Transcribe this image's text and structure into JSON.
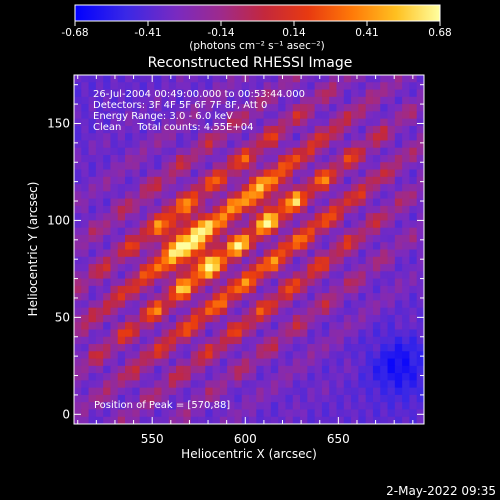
{
  "chart_data": {
    "type": "heatmap",
    "title": "Reconstructed RHESSI Image",
    "xlabel": "Heliocentric X (arcsec)",
    "ylabel": "Heliocentric Y (arcsec)",
    "xlim": [
      508,
      696
    ],
    "ylim": [
      -5,
      175
    ],
    "x_ticks": [
      550,
      600,
      650
    ],
    "y_ticks": [
      0,
      50,
      100,
      150
    ],
    "colorbar": {
      "range": [
        -0.68,
        0.68
      ],
      "ticks": [
        "-0.68",
        "-0.41",
        "-0.14",
        "0.14",
        "0.41",
        "0.68"
      ],
      "unit_label": "(photons cm⁻² s⁻¹ asec⁻²)"
    },
    "info_lines": [
      "26-Jul-2004 00:49:00.000 to 00:53:44.000",
      "Detectors: 3F 4F 5F 6F 7F 8F, Att 0",
      "Energy Range: 3.0 - 6.0 keV",
      "Clean     Total counts: 4.55E+04"
    ],
    "peak_label": "Position of Peak = [570,88]",
    "peak_position": [
      570,
      88
    ],
    "grid": false
  },
  "footer": {
    "timestamp": "2-May-2022 09:35"
  }
}
